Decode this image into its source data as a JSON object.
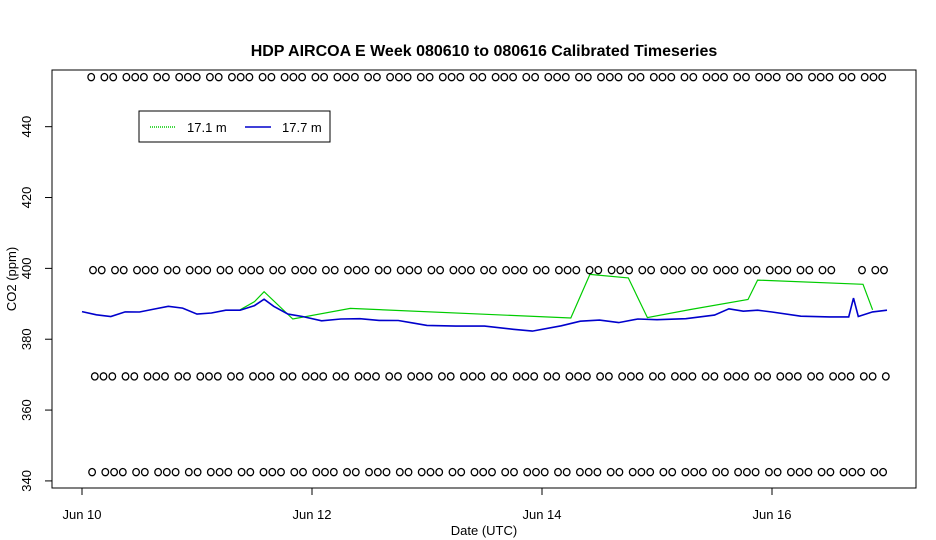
{
  "chart_data": {
    "type": "line",
    "title": "HDP AIRCOA E  Week 080610 to 080616  Calibrated Timeseries",
    "xlabel": "Date (UTC)",
    "ylabel": "CO2 (ppm)",
    "x_range": [
      "2008-06-10",
      "2008-06-17"
    ],
    "ylim": [
      338,
      456
    ],
    "x_ticks": [
      {
        "date": "2008-06-10",
        "label": "Jun 10"
      },
      {
        "date": "2008-06-12",
        "label": "Jun 12"
      },
      {
        "date": "2008-06-14",
        "label": "Jun 14"
      },
      {
        "date": "2008-06-16",
        "label": "Jun 16"
      }
    ],
    "y_ticks": [
      340,
      360,
      380,
      400,
      420,
      440
    ],
    "grid": false,
    "legend": {
      "position": "top-left",
      "entries": [
        "17.1 m",
        "17.7 m"
      ]
    },
    "series": [
      {
        "name": "17.1 m",
        "color": "#00cc00",
        "style": "line",
        "points": [
          [
            "2008-06-11T09:00",
            388.0
          ],
          [
            "2008-06-11T12:00",
            390.5
          ],
          [
            "2008-06-11T14:00",
            393.5
          ],
          [
            "2008-06-11T20:00",
            386.0
          ],
          [
            "2008-06-12T08:00",
            388.5
          ],
          [
            "2008-06-14T06:00",
            386.0
          ],
          [
            "2008-06-14T10:00",
            398.5
          ],
          [
            "2008-06-14T18:00",
            397.0
          ],
          [
            "2008-06-14T22:00",
            386.0
          ],
          [
            "2008-06-15T07:00",
            388.5
          ],
          [
            "2008-06-15T19:00",
            391.5
          ],
          [
            "2008-06-15T21:00",
            396.5
          ],
          [
            "2008-06-16T19:00",
            395.5
          ],
          [
            "2008-06-16T21:00",
            388.5
          ]
        ]
      },
      {
        "name": "17.7 m",
        "color": "#0000cc",
        "style": "line",
        "points": [
          [
            "2008-06-10T00:00",
            387.5
          ],
          [
            "2008-06-10T03:00",
            386.8
          ],
          [
            "2008-06-10T06:00",
            386.5
          ],
          [
            "2008-06-10T09:00",
            388.0
          ],
          [
            "2008-06-10T12:00",
            387.5
          ],
          [
            "2008-06-10T15:00",
            388.5
          ],
          [
            "2008-06-10T18:00",
            389.5
          ],
          [
            "2008-06-10T21:00",
            388.5
          ],
          [
            "2008-06-11T00:00",
            387.0
          ],
          [
            "2008-06-11T03:00",
            387.5
          ],
          [
            "2008-06-11T06:00",
            388.5
          ],
          [
            "2008-06-11T09:00",
            388.0
          ],
          [
            "2008-06-11T12:00",
            389.5
          ],
          [
            "2008-06-11T14:00",
            391.5
          ],
          [
            "2008-06-11T16:00",
            389.0
          ],
          [
            "2008-06-11T19:00",
            387.0
          ],
          [
            "2008-06-11T22:00",
            386.5
          ],
          [
            "2008-06-12T02:00",
            385.5
          ],
          [
            "2008-06-12T06:00",
            385.5
          ],
          [
            "2008-06-12T10:00",
            385.8
          ],
          [
            "2008-06-12T14:00",
            385.5
          ],
          [
            "2008-06-12T18:00",
            385.0
          ],
          [
            "2008-06-12T21:00",
            384.5
          ],
          [
            "2008-06-13T00:00",
            384.0
          ],
          [
            "2008-06-13T06:00",
            384.0
          ],
          [
            "2008-06-13T12:00",
            383.5
          ],
          [
            "2008-06-13T18:00",
            382.8
          ],
          [
            "2008-06-13T22:00",
            382.5
          ],
          [
            "2008-06-14T04:00",
            383.5
          ],
          [
            "2008-06-14T08:00",
            385.0
          ],
          [
            "2008-06-14T12:00",
            385.5
          ],
          [
            "2008-06-14T16:00",
            385.0
          ],
          [
            "2008-06-14T20:00",
            385.5
          ],
          [
            "2008-06-15T00:00",
            385.5
          ],
          [
            "2008-06-15T06:00",
            386.0
          ],
          [
            "2008-06-15T12:00",
            386.5
          ],
          [
            "2008-06-15T15:00",
            388.5
          ],
          [
            "2008-06-15T18:00",
            388.0
          ],
          [
            "2008-06-15T21:00",
            388.5
          ],
          [
            "2008-06-16T00:00",
            387.5
          ],
          [
            "2008-06-16T06:00",
            386.5
          ],
          [
            "2008-06-16T12:00",
            386.5
          ],
          [
            "2008-06-16T16:00",
            386.0
          ],
          [
            "2008-06-16T17:00",
            391.5
          ],
          [
            "2008-06-16T18:00",
            386.5
          ],
          [
            "2008-06-16T21:00",
            388.0
          ],
          [
            "2008-06-17T00:00",
            388.0
          ]
        ]
      },
      {
        "name": "",
        "color": "#000000",
        "style": "points",
        "points_level": 454.0,
        "marker": "o"
      },
      {
        "name": "",
        "color": "#000000",
        "style": "points",
        "points_level": 399.5,
        "marker": "o"
      },
      {
        "name": "",
        "color": "#000000",
        "style": "points",
        "points_level": 369.5,
        "marker": "o"
      },
      {
        "name": "",
        "color": "#000000",
        "style": "points",
        "points_level": 342.5,
        "marker": "o"
      }
    ]
  }
}
